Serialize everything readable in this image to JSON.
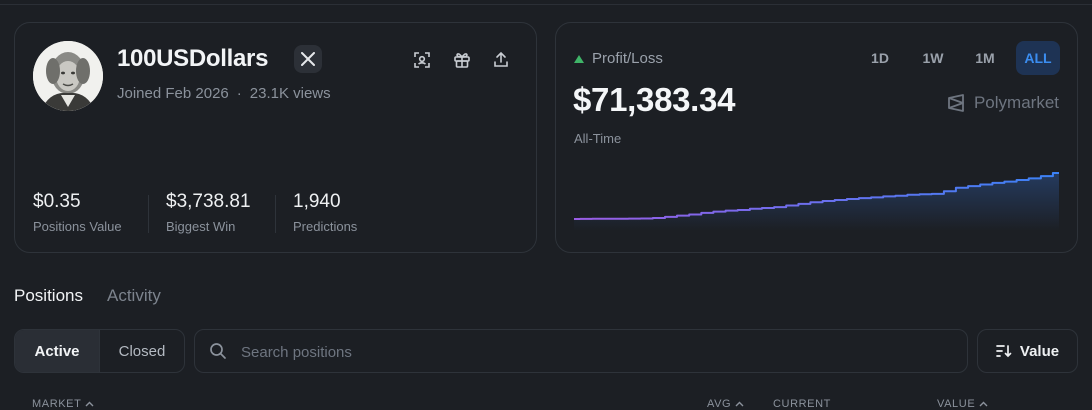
{
  "profile": {
    "username": "100USDollars",
    "joined": "Joined Feb 2026",
    "separator": "·",
    "views": "23.1K views",
    "stats": [
      {
        "value": "$0.35",
        "label": "Positions Value"
      },
      {
        "value": "$3,738.81",
        "label": "Biggest Win"
      },
      {
        "value": "1,940",
        "label": "Predictions"
      }
    ],
    "icons": [
      "x-logo-icon",
      "scan-icon",
      "gift-icon",
      "share-icon"
    ]
  },
  "pnl": {
    "label": "Profit/Loss",
    "value": "$71,383.34",
    "period_label": "All-Time",
    "ranges": [
      "1D",
      "1W",
      "1M",
      "ALL"
    ],
    "active_range": "ALL",
    "brand": "Polymarket",
    "trend_color": "#3fb468",
    "line_color_start": "#9b5de5",
    "line_color_end": "#3b82f6"
  },
  "tabs": {
    "positions": "Positions",
    "activity": "Activity",
    "active": "Positions"
  },
  "filters": {
    "active": "Active",
    "closed": "Closed",
    "selected": "Active"
  },
  "search": {
    "placeholder": "Search positions"
  },
  "sort": {
    "label": "Value"
  },
  "columns": {
    "market": "MARKET",
    "avg": "AVG",
    "current": "CURRENT",
    "value": "VALUE"
  },
  "chart_data": {
    "type": "area",
    "x": [
      0,
      1,
      2,
      3,
      4,
      5,
      6,
      7,
      8,
      9,
      10,
      11,
      12,
      13,
      14,
      15,
      16,
      17,
      18,
      19,
      20,
      21,
      22,
      23,
      24,
      25,
      26,
      27,
      28,
      29,
      30,
      31,
      32,
      33,
      34,
      35,
      36,
      37,
      38,
      39,
      40
    ],
    "series": [
      {
        "values": [
          0,
          100,
          250,
          400,
          500,
          650,
          800,
          1500,
          3200,
          5200,
          7000,
          9500,
          11500,
          13000,
          14000,
          16000,
          17000,
          18500,
          21000,
          23500,
          26000,
          28000,
          29500,
          31000,
          32500,
          33500,
          35000,
          36000,
          37500,
          38500,
          39000,
          43000,
          48500,
          51000,
          53500,
          56000,
          58000,
          60500,
          63000,
          66500,
          71383.34
        ]
      }
    ],
    "color_start": "#9b5de5",
    "color_end": "#3b82f6",
    "grid": false
  }
}
